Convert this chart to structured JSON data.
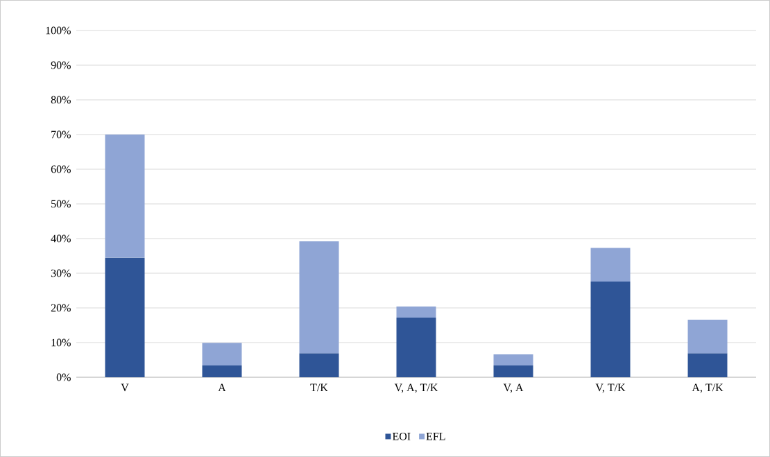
{
  "chart_data": {
    "type": "bar",
    "stacked": true,
    "categories": [
      "V",
      "A",
      "T/K",
      "V, A, T/K",
      "V, A",
      "V, T/K",
      "A, T/K"
    ],
    "series": [
      {
        "name": "EOI",
        "color": "#2f5597",
        "values": [
          34.5,
          3.4,
          6.9,
          17.2,
          3.4,
          27.6,
          6.9
        ]
      },
      {
        "name": "EFL",
        "color": "#8fa5d5",
        "values": [
          35.5,
          6.5,
          32.3,
          3.2,
          3.2,
          9.7,
          9.7
        ]
      }
    ],
    "ylim": [
      0,
      100
    ],
    "yticks": [
      {
        "value": 0,
        "label": "0%"
      },
      {
        "value": 10,
        "label": "10%"
      },
      {
        "value": 20,
        "label": "20%"
      },
      {
        "value": 30,
        "label": "30%"
      },
      {
        "value": 40,
        "label": "40%"
      },
      {
        "value": 50,
        "label": "50%"
      },
      {
        "value": 60,
        "label": "60%"
      },
      {
        "value": 70,
        "label": "70%"
      },
      {
        "value": 80,
        "label": "80%"
      },
      {
        "value": 90,
        "label": "90%"
      },
      {
        "value": 100,
        "label": "100%"
      }
    ],
    "grid": "y",
    "legend": "bottom"
  }
}
